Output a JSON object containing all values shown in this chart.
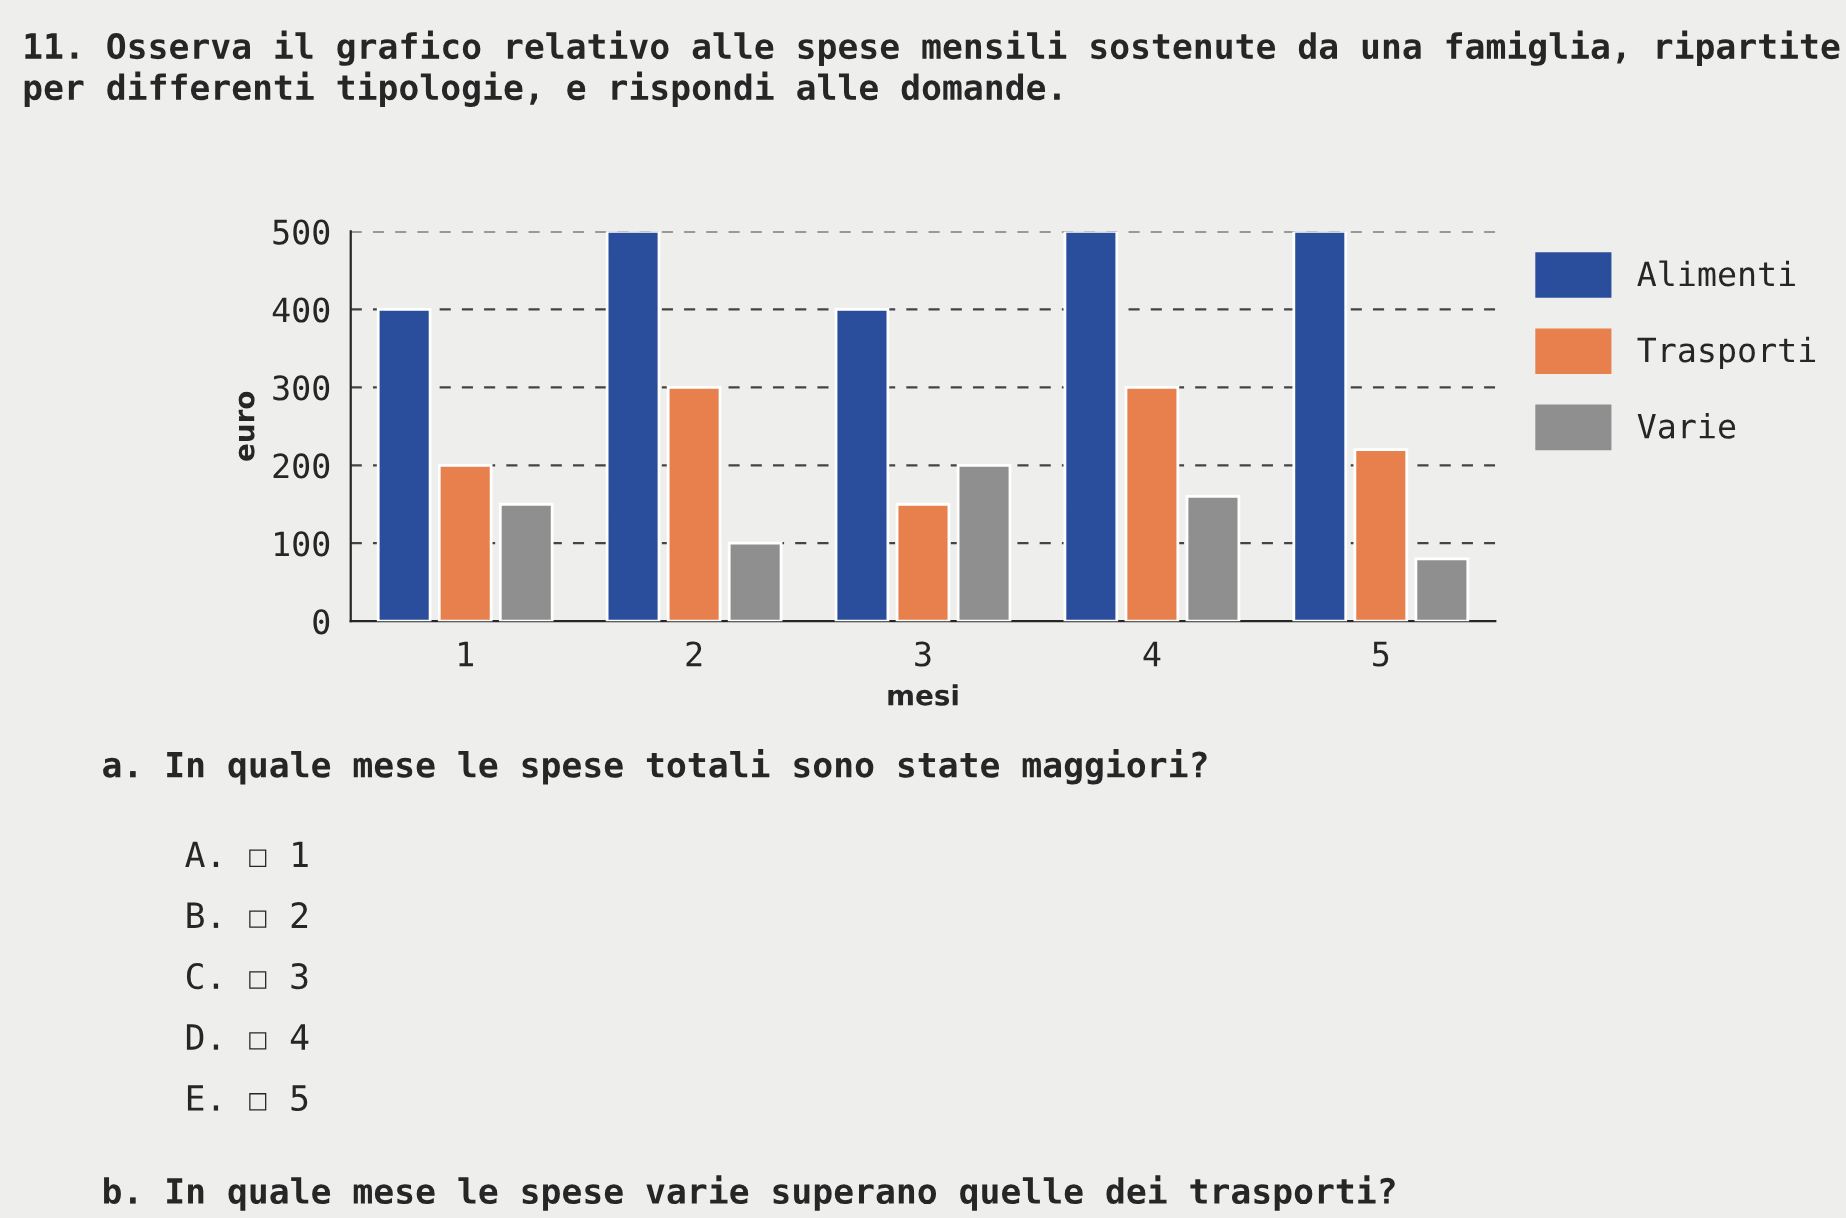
{
  "chart_data": {
    "type": "bar",
    "title": "11. Osserva il grafico relativo alle spese mensili sostenute da una famiglia, ripartite per differenti tipologie, e rispondi alle domande.",
    "xlabel": "mesi",
    "ylabel": "euro",
    "categories": [
      "1",
      "2",
      "3",
      "4",
      "5"
    ],
    "series": [
      {
        "name": "Alimenti",
        "color": "#2a4d9c",
        "values": [
          400,
          500,
          400,
          500,
          500
        ]
      },
      {
        "name": "Trasporti",
        "color": "#e8804e",
        "values": [
          200,
          300,
          150,
          300,
          220
        ]
      },
      {
        "name": "Varie",
        "color": "#8f8f8f",
        "values": [
          150,
          100,
          200,
          160,
          80
        ]
      }
    ],
    "ylim": [
      0,
      500
    ],
    "yticks": [
      0,
      100,
      200,
      300,
      400,
      500
    ],
    "grid": "y",
    "legend": "top right",
    "annotations": [
      "a. In quale mese le spese totali sono state maggiori?",
      "A. ☐ 1",
      "B. ☐ 2",
      "C. ☐ 3",
      "D. ☐ 4",
      "E. ☐ 5",
      "b. In quale mese le spese varie superano quelle dei trasporti?"
    ]
  }
}
